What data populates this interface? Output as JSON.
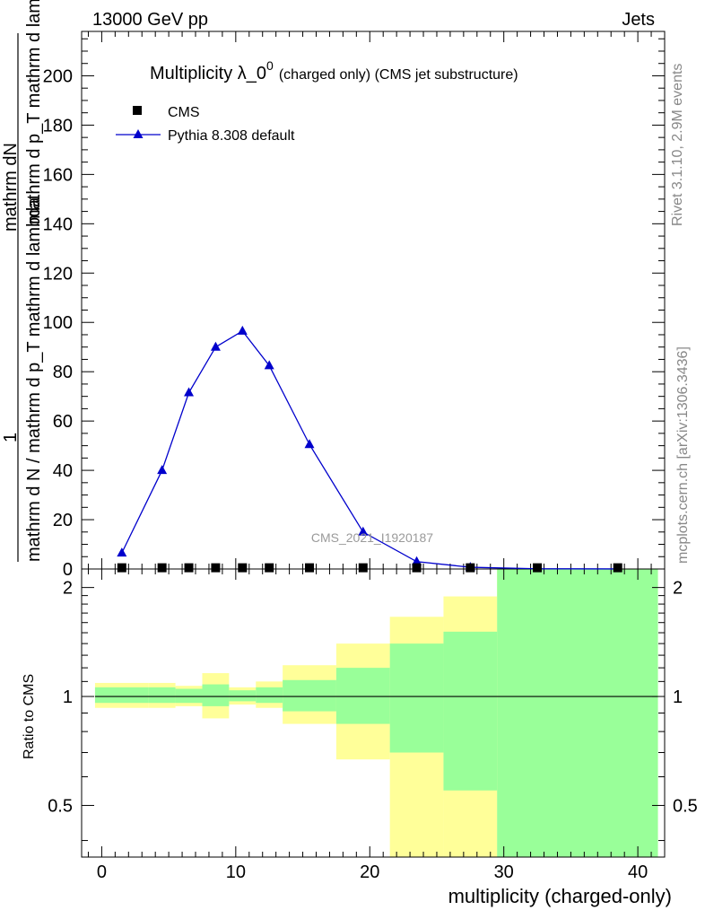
{
  "header": {
    "left": "13000 GeV pp",
    "right": "Jets"
  },
  "side_labels": {
    "rivet": "Rivet 3.1.10,  2.9M events",
    "mcplots": "mcplots.cern.ch [arXiv:1306.3436]"
  },
  "watermark": "CMS_2021_I1920187",
  "chart_data": [
    {
      "type": "line",
      "title_main": "Multiplicity λ_0",
      "title_sup": "0",
      "title_suffix": "(charged only) (CMS jet substructure)",
      "ylabel_numerator": "mathrm dN",
      "ylabel_numerator_prefix": "1",
      "ylabel_mid": "mathrm d p_T mathrm d lambda",
      "ylabel_T": "T",
      "ylabel_denominator": "mathrm d N / mathrm d p_T mathrm d lambda",
      "ylim": [
        0,
        218
      ],
      "yticks": [
        0,
        20,
        40,
        60,
        80,
        100,
        120,
        140,
        160,
        180,
        200
      ],
      "xlim": [
        -1.5,
        42
      ],
      "legend": [
        {
          "name": "CMS",
          "marker": "square",
          "color": "#000000"
        },
        {
          "name": "Pythia 8.308 default",
          "marker": "triangle",
          "color": "#0000cc"
        }
      ],
      "series": [
        {
          "name": "CMS",
          "x": [
            1.5,
            4.5,
            6.5,
            8.5,
            10.5,
            12.5,
            15.5,
            19.5,
            23.5,
            27.5,
            32.5,
            38.5
          ],
          "y": [
            0.5,
            0.5,
            0.5,
            0.5,
            0.5,
            0.5,
            0.5,
            0.5,
            0.5,
            0.5,
            0.5,
            0.5
          ]
        },
        {
          "name": "Pythia 8.308 default",
          "x": [
            1.5,
            4.5,
            6.5,
            8.5,
            10.5,
            12.5,
            15.5,
            19.5,
            23.5,
            27.5,
            32.5,
            38.5
          ],
          "y": [
            6.5,
            40,
            71.5,
            90,
            96.5,
            82.5,
            50.5,
            15,
            3,
            0.7,
            0.1,
            0.02
          ]
        }
      ]
    },
    {
      "type": "area",
      "ylabel": "Ratio to CMS",
      "xlabel": "multiplicity (charged-only)",
      "ylim": [
        0.36,
        2.25
      ],
      "xlim": [
        -1.5,
        42
      ],
      "xticks": [
        0,
        10,
        20,
        30,
        40
      ],
      "yticks": [
        0.5,
        1,
        2
      ],
      "reference": 1,
      "colors": {
        "outer_band": "#ffff99",
        "inner_band": "#99ff99",
        "reference_line": "#000000"
      },
      "bins": [
        {
          "lo": -0.5,
          "hi": 3.5,
          "outer": [
            0.93,
            1.09
          ],
          "inner": [
            0.96,
            1.06
          ]
        },
        {
          "lo": 3.5,
          "hi": 5.5,
          "outer": [
            0.93,
            1.09
          ],
          "inner": [
            0.96,
            1.06
          ]
        },
        {
          "lo": 5.5,
          "hi": 7.5,
          "outer": [
            0.94,
            1.07
          ],
          "inner": [
            0.96,
            1.05
          ]
        },
        {
          "lo": 7.5,
          "hi": 9.5,
          "outer": [
            0.87,
            1.16
          ],
          "inner": [
            0.94,
            1.08
          ]
        },
        {
          "lo": 9.5,
          "hi": 11.5,
          "outer": [
            0.95,
            1.06
          ],
          "inner": [
            0.97,
            1.04
          ]
        },
        {
          "lo": 11.5,
          "hi": 13.5,
          "outer": [
            0.93,
            1.1
          ],
          "inner": [
            0.96,
            1.06
          ]
        },
        {
          "lo": 13.5,
          "hi": 17.5,
          "outer": [
            0.84,
            1.22
          ],
          "inner": [
            0.91,
            1.11
          ]
        },
        {
          "lo": 17.5,
          "hi": 21.5,
          "outer": [
            0.67,
            1.4
          ],
          "inner": [
            0.84,
            1.2
          ]
        },
        {
          "lo": 21.5,
          "hi": 25.5,
          "outer": [
            0.36,
            1.66
          ],
          "inner": [
            0.7,
            1.4
          ]
        },
        {
          "lo": 25.5,
          "hi": 29.5,
          "outer": [
            0.36,
            1.89
          ],
          "inner": [
            0.55,
            1.51
          ]
        },
        {
          "lo": 29.5,
          "hi": 41.5,
          "outer": [
            0.36,
            2.25
          ],
          "inner": [
            0.36,
            2.25
          ]
        }
      ]
    }
  ]
}
